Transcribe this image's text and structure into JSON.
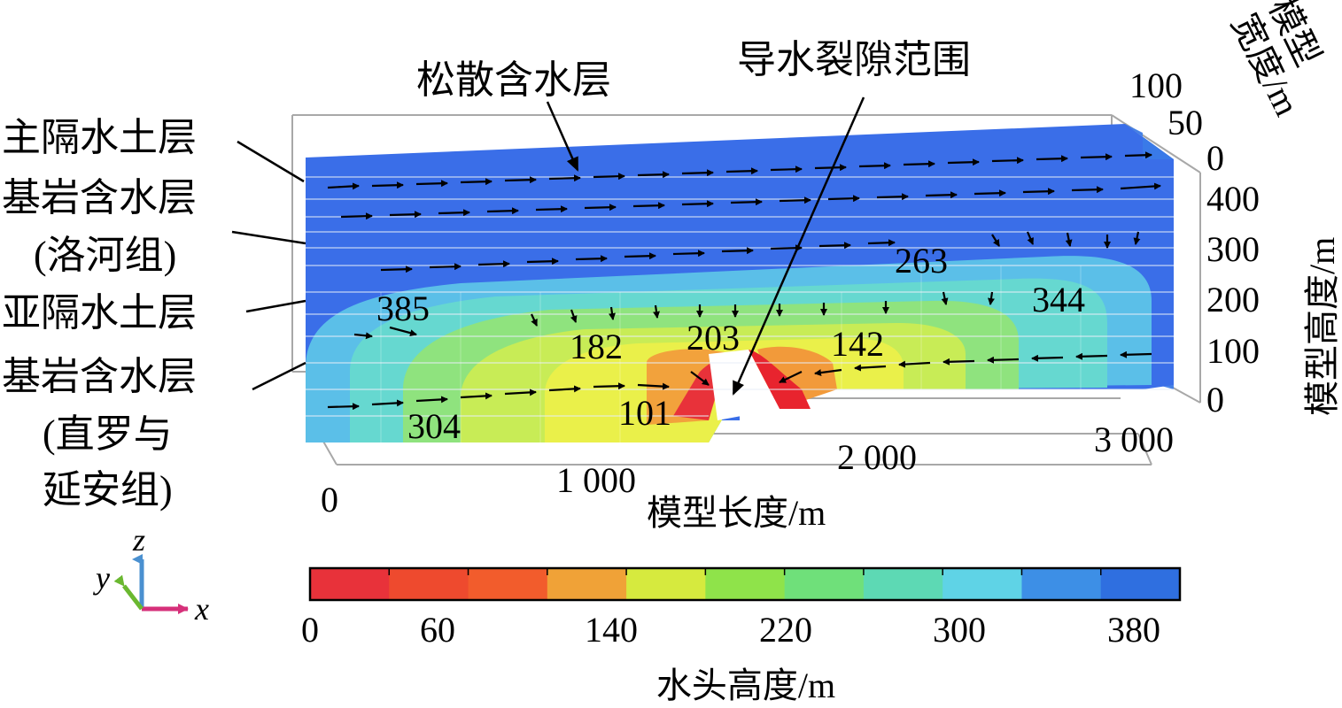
{
  "layer_labels": {
    "primary_aquiclude": "主隔水土层",
    "bedrock_aquifer_luohe_1": "基岩含水层",
    "bedrock_aquifer_luohe_2": "(洛河组)",
    "sub_aquiclude": "亚隔水土层",
    "bedrock_aquifer_zhiluo_1": "基岩含水层",
    "bedrock_aquifer_zhiluo_2": "(直罗与",
    "bedrock_aquifer_zhiluo_3": "延安组)"
  },
  "callouts": {
    "loose_aquifer": "松散含水层",
    "fracture_zone": "导水裂隙范围"
  },
  "contour_labels": [
    "385",
    "182",
    "203",
    "142",
    "263",
    "344",
    "304",
    "101"
  ],
  "axes": {
    "length": {
      "title": "模型长度/m",
      "ticks": [
        "0",
        "1 000",
        "2 000",
        "3 000"
      ]
    },
    "height": {
      "title": "模型高度/m",
      "ticks": [
        "0",
        "100",
        "200",
        "300",
        "400"
      ]
    },
    "width": {
      "title_1": "模型",
      "title_2": "宽度/m",
      "ticks": [
        "0",
        "50",
        "100"
      ]
    }
  },
  "triad": {
    "x": "x",
    "y": "y",
    "z": "z"
  },
  "colorbar": {
    "title": "水头高度/m",
    "ticks": [
      "0",
      "60",
      "140",
      "220",
      "300",
      "380"
    ],
    "colors": [
      "#e8323a",
      "#ee4a2e",
      "#f25c2c",
      "#f0a237",
      "#d6ea3e",
      "#8fe34a",
      "#6fe07a",
      "#5dd9b4",
      "#5fd3e6",
      "#3d8fe6",
      "#2f6fe0"
    ]
  },
  "colors": {
    "deep_blue": "#2f63e8",
    "light_blue": "#58c5e8",
    "cyan": "#62d6ce",
    "green": "#86e07a",
    "yellow": "#e8f04a",
    "orange": "#f29a3a",
    "red": "#e8242e"
  }
}
